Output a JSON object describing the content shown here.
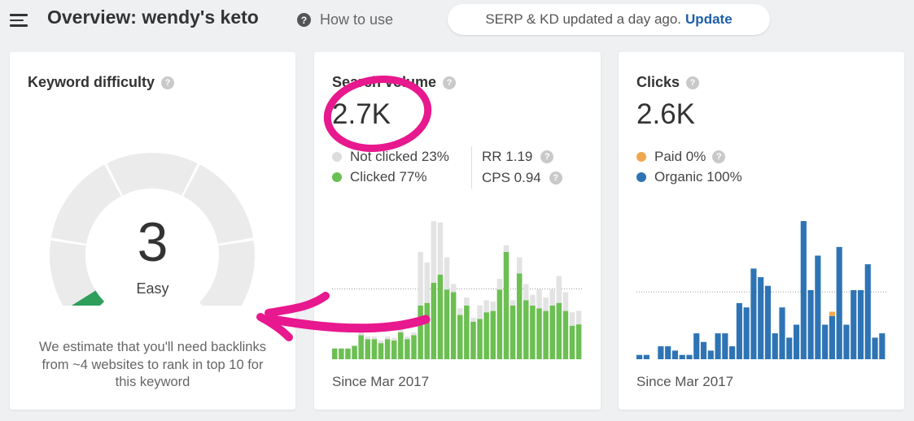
{
  "header": {
    "title": "Overview: wendy's keto",
    "how_to_use": "How to use",
    "serp_status": "SERP & KD updated a day ago.",
    "update_link": "Update"
  },
  "kd_card": {
    "title": "Keyword difficulty",
    "value": "3",
    "label": "Easy",
    "description": "We estimate that you'll need backlinks from ~4 websites to rank in top 10 for this keyword",
    "kd_score": 3,
    "gauge_fill_color": "#2e9e5b",
    "gauge_track_color": "#ebebeb"
  },
  "volume_card": {
    "title": "Search volume",
    "value": "2.7K",
    "not_clicked": "Not clicked 23%",
    "clicked": "Clicked 77%",
    "rr": "RR 1.19",
    "cps": "CPS 0.94",
    "since": "Since Mar 2017",
    "colors": {
      "clicked": "#6cbf52",
      "not_clicked": "#e3e3e3"
    }
  },
  "clicks_card": {
    "title": "Clicks",
    "value": "2.6K",
    "paid": "Paid 0%",
    "organic": "Organic 100%",
    "since": "Since Mar 2017",
    "colors": {
      "organic": "#2e74b5",
      "paid": "#f0a850"
    }
  },
  "chart_data": [
    {
      "type": "bar",
      "title": "Search volume",
      "xlabel": "Since Mar 2017",
      "series": [
        {
          "name": "Clicked",
          "values": [
            8,
            8,
            8,
            10,
            18,
            15,
            15,
            12,
            15,
            14,
            20,
            15,
            18,
            40,
            42,
            57,
            63,
            52,
            50,
            33,
            40,
            28,
            30,
            35,
            36,
            52,
            80,
            40,
            64,
            44,
            40,
            38,
            36,
            40,
            42,
            36,
            25,
            26
          ]
        },
        {
          "name": "Not clicked",
          "values": [
            0,
            0,
            0,
            0,
            2,
            2,
            2,
            2,
            2,
            2,
            3,
            2,
            2,
            40,
            30,
            46,
            39,
            24,
            6,
            5,
            6,
            3,
            10,
            9,
            7,
            8,
            5,
            4,
            12,
            12,
            8,
            14,
            10,
            12,
            20,
            14,
            10,
            10
          ]
        }
      ],
      "dotted_reference_line": "average",
      "colors": [
        "#6cbf52",
        "#e3e3e3"
      ]
    },
    {
      "type": "bar",
      "title": "Clicks",
      "xlabel": "Since Mar 2017",
      "series": [
        {
          "name": "Organic",
          "values": [
            5,
            5,
            0,
            15,
            15,
            10,
            5,
            5,
            30,
            20,
            10,
            30,
            30,
            15,
            65,
            60,
            105,
            95,
            85,
            30,
            60,
            25,
            40,
            160,
            80,
            120,
            40,
            50,
            130,
            40,
            80,
            80,
            110,
            25,
            30
          ]
        },
        {
          "name": "Paid",
          "values": [
            0,
            0,
            0,
            0,
            0,
            0,
            0,
            0,
            0,
            0,
            0,
            0,
            0,
            0,
            0,
            0,
            0,
            0,
            0,
            0,
            0,
            0,
            0,
            0,
            0,
            0,
            0,
            5,
            0,
            0,
            0,
            0,
            0,
            0,
            0
          ]
        }
      ],
      "dotted_reference_line": "average",
      "colors": [
        "#2e74b5",
        "#f0a850"
      ]
    }
  ],
  "annotation_color": "#e8188e"
}
